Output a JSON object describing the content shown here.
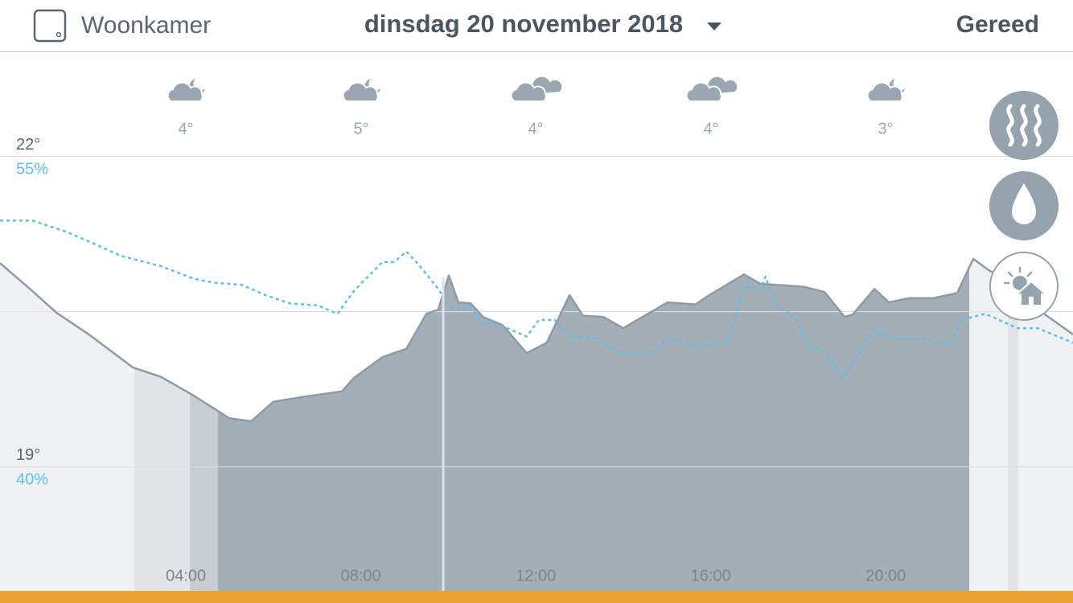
{
  "header": {
    "room": "Woonkamer",
    "date": "dinsdag 20 november 2018",
    "done": "Gereed"
  },
  "forecast": [
    {
      "temp": "4°"
    },
    {
      "temp": "5°"
    },
    {
      "temp": "4°"
    },
    {
      "temp": "4°"
    },
    {
      "temp": "3°"
    }
  ],
  "chart_data": {
    "type": "line",
    "xlim": [
      -0.25,
      24.28
    ],
    "xticks": [
      {
        "value": 4,
        "label": "04:00"
      },
      {
        "value": 8,
        "label": "08:00"
      },
      {
        "value": 12,
        "label": "12:00"
      },
      {
        "value": 16,
        "label": "16:00"
      },
      {
        "value": 20,
        "label": "20:00"
      }
    ],
    "ylim": [
      17.8,
      23.0
    ],
    "yticks": [
      {
        "value": 19,
        "label": "19°"
      },
      {
        "value": 22,
        "label": "22°"
      }
    ],
    "y2lim": [
      34.1,
      60.1
    ],
    "y2ticks": [
      {
        "value": 40,
        "label": "40%"
      },
      {
        "value": 55,
        "label": "55%"
      }
    ],
    "series": [
      {
        "color": "#8e9ba6",
        "fill": true,
        "x": [
          -0.25,
          0.49,
          1.04,
          1.78,
          2.79,
          3.43,
          4.17,
          4.99,
          5.49,
          6.0,
          6.74,
          7.57,
          7.84,
          8.49,
          9.04,
          9.5,
          9.77,
          10.01,
          10.23,
          10.51,
          10.79,
          11.24,
          11.79,
          12.25,
          12.77,
          13.08,
          13.54,
          14.0,
          14.28,
          15.01,
          15.65,
          15.93,
          16.76,
          17.13,
          18.14,
          18.6,
          19.06,
          19.24,
          19.74,
          20.07,
          20.53,
          21.08,
          21.63,
          22.0,
          22.36,
          22.92,
          23.65,
          24.28
        ],
        "values": [
          20.97,
          20.7,
          20.49,
          20.28,
          19.96,
          19.87,
          19.69,
          19.47,
          19.44,
          19.63,
          19.68,
          19.73,
          19.86,
          20.06,
          20.14,
          20.48,
          20.52,
          20.85,
          20.59,
          20.58,
          20.45,
          20.37,
          20.1,
          20.2,
          20.66,
          20.46,
          20.45,
          20.34,
          20.41,
          20.59,
          20.57,
          20.65,
          20.86,
          20.77,
          20.74,
          20.69,
          20.45,
          20.47,
          20.72,
          20.59,
          20.63,
          20.63,
          20.68,
          21.01,
          20.9,
          20.77,
          20.47,
          20.28
        ]
      },
      {
        "axis": "y2",
        "color": "#5bc0eb",
        "dashed": true,
        "x": [
          -0.25,
          0.49,
          1.22,
          1.78,
          2.51,
          3.43,
          4.17,
          4.63,
          5.27,
          5.82,
          6.37,
          7.01,
          7.47,
          7.84,
          8.49,
          8.76,
          9.04,
          9.31,
          9.77,
          10.05,
          10.51,
          10.78,
          11.24,
          11.79,
          12.07,
          12.43,
          12.8,
          13.36,
          13.9,
          14.64,
          15.01,
          15.75,
          16.39,
          16.76,
          17.13,
          17.25,
          17.49,
          17.95,
          18.23,
          18.6,
          19.02,
          19.74,
          20.25,
          20.89,
          21.5,
          21.72,
          22.27,
          23.01,
          23.47,
          24.28
        ],
        "values": [
          52.0,
          52.0,
          51.5,
          51.0,
          50.3,
          49.8,
          49.2,
          49.0,
          48.9,
          48.4,
          48.0,
          47.9,
          47.5,
          48.6,
          50.0,
          50.0,
          50.5,
          49.9,
          48.7,
          47.8,
          47.8,
          47.1,
          46.9,
          46.4,
          47.2,
          47.2,
          46.4,
          46.3,
          45.6,
          45.6,
          46.3,
          45.9,
          46.1,
          48.8,
          48.7,
          49.3,
          47.9,
          47.3,
          45.9,
          45.7,
          44.4,
          46.7,
          46.3,
          46.3,
          46.0,
          47.2,
          47.5,
          46.8,
          46.8,
          46.1
        ]
      }
    ]
  }
}
